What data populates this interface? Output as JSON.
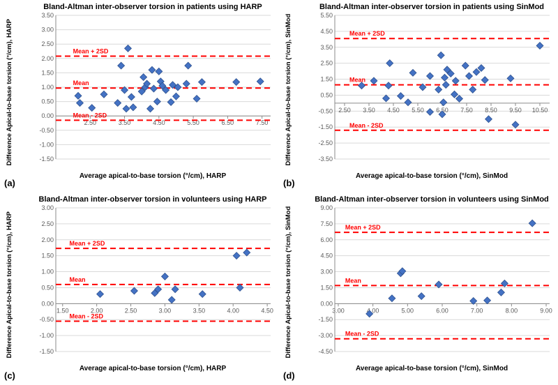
{
  "colors": {
    "marker": "#4472c4",
    "marker_border": "#2f528f",
    "ref_line": "#ff0000",
    "grid": "#d9d9d9",
    "axis": "#8a8a8a",
    "bg": "#ffffff",
    "tick_text": "#5a5a5a"
  },
  "marker": {
    "size": 7,
    "rotation": 45
  },
  "panels": [
    {
      "key": "a",
      "label": "(a)",
      "title": "Bland-Altman inter-observer torsion in patients using HARP",
      "xlabel": "Average apical-to-base torsion (°/cm), HARP",
      "ylabel": "Difference Apical-to-base torsion (°/cm), HARP",
      "xlim": [
        1.5,
        7.75
      ],
      "ylim": [
        -1.5,
        3.5
      ],
      "xticks": [
        2.5,
        3.5,
        4.5,
        5.5,
        6.5,
        7.5
      ],
      "yticks": [
        -1.5,
        -1.0,
        -0.5,
        0.0,
        0.5,
        1.0,
        1.5,
        2.0,
        2.5,
        3.0,
        3.5
      ],
      "ytick_step_fmt": 2,
      "xtick_fmt": 2,
      "ref_lines": [
        {
          "y": 2.08,
          "label": "Mean + 2SD",
          "label_x": 2.0
        },
        {
          "y": 0.97,
          "label": "Mean",
          "label_x": 2.0
        },
        {
          "y": -0.15,
          "label": "Mean - 2SD",
          "label_x": 2.0
        }
      ],
      "points": [
        [
          2.15,
          0.7
        ],
        [
          2.2,
          0.45
        ],
        [
          2.55,
          0.28
        ],
        [
          2.9,
          0.75
        ],
        [
          3.3,
          0.45
        ],
        [
          3.4,
          1.75
        ],
        [
          3.5,
          0.9
        ],
        [
          3.55,
          0.25
        ],
        [
          3.6,
          2.35
        ],
        [
          3.7,
          0.66
        ],
        [
          3.75,
          0.3
        ],
        [
          4.0,
          0.85
        ],
        [
          4.05,
          1.35
        ],
        [
          4.1,
          1.0
        ],
        [
          4.15,
          1.12
        ],
        [
          4.25,
          0.25
        ],
        [
          4.3,
          1.6
        ],
        [
          4.35,
          0.95
        ],
        [
          4.45,
          0.5
        ],
        [
          4.5,
          1.55
        ],
        [
          4.55,
          1.2
        ],
        [
          4.6,
          1.05
        ],
        [
          4.7,
          0.9
        ],
        [
          4.85,
          0.48
        ],
        [
          4.9,
          1.08
        ],
        [
          5.0,
          0.68
        ],
        [
          5.05,
          1.0
        ],
        [
          5.3,
          1.12
        ],
        [
          5.35,
          1.75
        ],
        [
          5.6,
          0.6
        ],
        [
          5.75,
          1.18
        ],
        [
          6.75,
          1.18
        ],
        [
          7.45,
          1.2
        ]
      ]
    },
    {
      "key": "b",
      "label": "(b)",
      "title": "Bland-Altman inter-observer torsion in patients using SinMod",
      "xlabel": "Average apical-to-base torsion (°/cm), SinMod",
      "ylabel": "Difference Apical-to-base torsion (°/cm), SinMod",
      "xlim": [
        2.1,
        10.9
      ],
      "ylim": [
        -3.5,
        5.5
      ],
      "xticks": [
        2.5,
        3.5,
        4.5,
        5.5,
        6.5,
        7.5,
        8.5,
        9.5,
        10.5
      ],
      "yticks": [
        -3.5,
        -2.5,
        -1.5,
        -0.5,
        0.5,
        1.5,
        2.5,
        3.5,
        4.5,
        5.5
      ],
      "ytick_step_fmt": 2,
      "xtick_fmt": 2,
      "ref_lines": [
        {
          "y": 4.05,
          "label": "Mean + 2SD",
          "label_x": 2.7
        },
        {
          "y": 1.15,
          "label": "Mean",
          "label_x": 2.7
        },
        {
          "y": -1.7,
          "label": "Mean - 2SD",
          "label_x": 2.7
        }
      ],
      "points": [
        [
          3.2,
          1.1
        ],
        [
          3.7,
          1.4
        ],
        [
          4.2,
          0.3
        ],
        [
          4.3,
          1.1
        ],
        [
          4.35,
          2.5
        ],
        [
          4.8,
          0.45
        ],
        [
          5.1,
          0.05
        ],
        [
          5.3,
          1.9
        ],
        [
          5.7,
          1.0
        ],
        [
          6.0,
          -0.55
        ],
        [
          6.0,
          1.7
        ],
        [
          6.35,
          0.85
        ],
        [
          6.45,
          3.0
        ],
        [
          6.5,
          -0.7
        ],
        [
          6.55,
          0.05
        ],
        [
          6.6,
          1.6
        ],
        [
          6.65,
          1.15
        ],
        [
          6.7,
          2.1
        ],
        [
          6.85,
          1.85
        ],
        [
          7.0,
          0.55
        ],
        [
          7.05,
          1.4
        ],
        [
          7.2,
          0.28
        ],
        [
          7.45,
          2.35
        ],
        [
          7.6,
          1.7
        ],
        [
          7.75,
          0.85
        ],
        [
          7.9,
          1.95
        ],
        [
          8.1,
          2.2
        ],
        [
          8.25,
          1.45
        ],
        [
          8.4,
          -1.0
        ],
        [
          9.3,
          1.55
        ],
        [
          9.5,
          -1.35
        ],
        [
          10.5,
          3.6
        ]
      ]
    },
    {
      "key": "c",
      "label": "(c)",
      "title": "Bland-Altman inter-observer torsion in volunteers using HARP",
      "xlabel": "Average apical-to-base torsion (°/cm), HARP",
      "ylabel": "Difference Apical-to-base torsion (°/cm), HARP",
      "xlim": [
        1.4,
        4.55
      ],
      "ylim": [
        -1.5,
        3.0
      ],
      "xticks": [
        1.5,
        2.0,
        2.5,
        3.0,
        3.5,
        4.0,
        4.5
      ],
      "yticks": [
        -1.5,
        -1.0,
        -0.5,
        0.0,
        0.5,
        1.0,
        1.5,
        2.0,
        2.5,
        3.0
      ],
      "ytick_step_fmt": 2,
      "xtick_fmt": 2,
      "ref_lines": [
        {
          "y": 1.73,
          "label": "Mean + 2SD",
          "label_x": 1.6
        },
        {
          "y": 0.6,
          "label": "Mean",
          "label_x": 1.6
        },
        {
          "y": -0.55,
          "label": "Mean - 2SD",
          "label_x": 1.6
        }
      ],
      "points": [
        [
          2.05,
          0.3
        ],
        [
          2.55,
          0.4
        ],
        [
          2.85,
          0.33
        ],
        [
          2.9,
          0.45
        ],
        [
          3.0,
          0.85
        ],
        [
          3.1,
          0.12
        ],
        [
          3.15,
          0.45
        ],
        [
          3.55,
          0.3
        ],
        [
          4.05,
          1.5
        ],
        [
          4.1,
          0.5
        ],
        [
          4.2,
          1.6
        ]
      ]
    },
    {
      "key": "d",
      "label": "(d)",
      "title": "Bland-Altman inter-observer torsion in volunteers using SinMod",
      "xlabel": "Average apical-to-base torsion (°/cm), SinMod",
      "ylabel": "Difference Apical-to-base torsion (°/cm), SinMod",
      "xlim": [
        2.9,
        9.1
      ],
      "ylim": [
        -4.5,
        9.0
      ],
      "xticks": [
        3.0,
        4.0,
        5.0,
        6.0,
        7.0,
        8.0,
        9.0
      ],
      "yticks": [
        -4.5,
        -3.0,
        -1.5,
        0.0,
        1.5,
        3.0,
        4.5,
        6.0,
        7.5,
        9.0
      ],
      "ytick_step_fmt": 2,
      "xtick_fmt": 2,
      "ref_lines": [
        {
          "y": 6.7,
          "label": "Mean + 2SD",
          "label_x": 3.2
        },
        {
          "y": 1.7,
          "label": "Mean",
          "label_x": 3.2
        },
        {
          "y": -3.3,
          "label": "Mean - 2SD",
          "label_x": 3.2
        }
      ],
      "points": [
        [
          3.9,
          -0.95
        ],
        [
          4.55,
          0.5
        ],
        [
          4.8,
          2.85
        ],
        [
          4.85,
          3.05
        ],
        [
          5.4,
          0.7
        ],
        [
          5.9,
          1.8
        ],
        [
          6.9,
          0.25
        ],
        [
          7.3,
          0.3
        ],
        [
          7.7,
          1.05
        ],
        [
          7.8,
          1.9
        ],
        [
          8.6,
          7.55
        ]
      ]
    }
  ]
}
